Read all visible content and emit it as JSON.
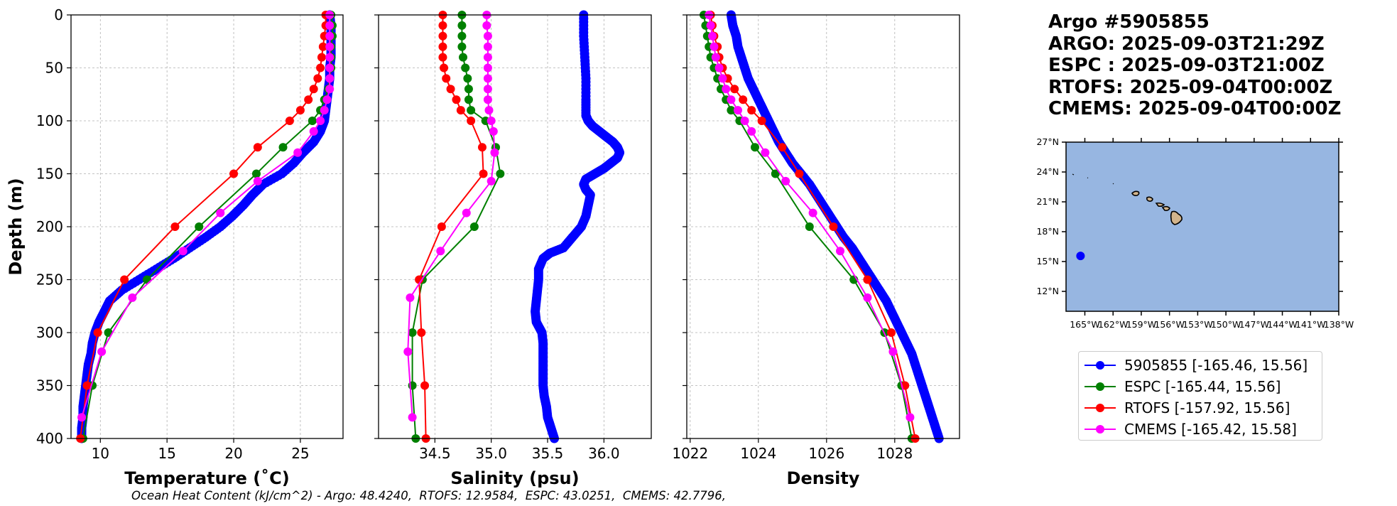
{
  "header": {
    "lines": [
      "Argo #5905855",
      "ARGO: 2025-09-03T21:29Z",
      "ESPC : 2025-09-03T21:00Z",
      "RTOFS: 2025-09-04T00:00Z",
      "CMEMS: 2025-09-04T00:00Z"
    ]
  },
  "footer": "Ocean Heat Content (kJ/cm^2) - Argo: 48.4240,  RTOFS: 12.9584,  ESPC: 43.0251,  CMEMS: 42.7796,",
  "legend": [
    {
      "label": "5905855 [-165.46, 15.56]",
      "color": "#0000ff"
    },
    {
      "label": "ESPC [-165.44, 15.56]",
      "color": "#008000"
    },
    {
      "label": "RTOFS [-157.92, 15.56]",
      "color": "#ff0000"
    },
    {
      "label": "CMEMS [-165.42, 15.58]",
      "color": "#ff00ff"
    }
  ],
  "chart_data": [
    {
      "type": "line",
      "xlabel": "Temperature (˚C)",
      "ylabel": "Depth (m)",
      "xlim": [
        7.8,
        28.2
      ],
      "ylim": [
        400,
        0
      ],
      "xticks": [
        10,
        15,
        20,
        25
      ],
      "yticks": [
        0,
        50,
        100,
        150,
        200,
        250,
        300,
        350,
        400
      ],
      "grid": true,
      "series": [
        {
          "name": "5905855",
          "color": "#0000ff",
          "dense": true,
          "depth": [
            0,
            10,
            20,
            30,
            40,
            50,
            60,
            70,
            80,
            90,
            100,
            110,
            120,
            130,
            140,
            150,
            160,
            170,
            180,
            190,
            200,
            210,
            220,
            230,
            240,
            250,
            260,
            270,
            280,
            290,
            300,
            310,
            320,
            330,
            340,
            350,
            360,
            370,
            380,
            390,
            400
          ],
          "values": [
            27.2,
            27.3,
            27.3,
            27.3,
            27.3,
            27.2,
            27.2,
            27.1,
            27.0,
            26.9,
            26.8,
            26.5,
            26.0,
            25.2,
            24.5,
            23.6,
            22.2,
            21.4,
            20.7,
            19.9,
            19.0,
            17.9,
            16.7,
            15.5,
            14.2,
            12.9,
            11.6,
            10.7,
            10.3,
            9.9,
            9.6,
            9.4,
            9.3,
            9.1,
            9.0,
            8.9,
            8.8,
            8.7,
            8.7,
            8.6,
            8.6
          ]
        },
        {
          "name": "ESPC",
          "color": "#008000",
          "depth": [
            0,
            10,
            20,
            30,
            40,
            50,
            60,
            70,
            80,
            90,
            100,
            125,
            150,
            200,
            250,
            300,
            350,
            400
          ],
          "values": [
            27.3,
            27.4,
            27.4,
            27.3,
            27.3,
            27.3,
            27.2,
            27.1,
            26.8,
            26.5,
            25.9,
            23.7,
            21.7,
            17.4,
            13.5,
            10.6,
            9.4,
            8.7
          ]
        },
        {
          "name": "RTOFS",
          "color": "#ff0000",
          "depth": [
            0,
            10,
            20,
            30,
            40,
            50,
            60,
            70,
            80,
            90,
            100,
            125,
            150,
            200,
            250,
            300,
            350,
            400
          ],
          "values": [
            26.9,
            26.9,
            26.8,
            26.7,
            26.6,
            26.5,
            26.3,
            26.0,
            25.6,
            25.0,
            24.2,
            21.8,
            20.0,
            15.6,
            11.8,
            9.8,
            9.0,
            8.5
          ]
        },
        {
          "name": "CMEMS",
          "color": "#ff00ff",
          "depth": [
            0,
            10,
            20,
            30,
            40,
            50,
            60,
            70,
            80,
            90,
            100,
            110,
            130,
            157,
            187,
            223,
            267,
            318,
            380
          ],
          "values": [
            27.2,
            27.2,
            27.2,
            27.2,
            27.2,
            27.2,
            27.2,
            27.2,
            27.0,
            26.8,
            26.5,
            26.0,
            24.8,
            21.8,
            19.0,
            16.2,
            12.4,
            10.1,
            8.6
          ]
        }
      ]
    },
    {
      "type": "line",
      "xlabel": "Salinity (psu)",
      "ylabel": "",
      "xlim": [
        34.0,
        36.42
      ],
      "ylim": [
        400,
        0
      ],
      "xticks": [
        34.5,
        35.0,
        35.5,
        36.0
      ],
      "yticks": [
        0,
        50,
        100,
        150,
        200,
        250,
        300,
        350,
        400
      ],
      "grid": true,
      "series": [
        {
          "name": "5905855",
          "color": "#0000ff",
          "dense": true,
          "depth": [
            0,
            20,
            40,
            60,
            80,
            95,
            100,
            105,
            110,
            115,
            120,
            125,
            130,
            135,
            140,
            145,
            150,
            155,
            160,
            165,
            170,
            180,
            190,
            200,
            210,
            220,
            225,
            230,
            240,
            250,
            260,
            270,
            280,
            290,
            300,
            310,
            320,
            330,
            340,
            350,
            360,
            370,
            380,
            390,
            400
          ],
          "values": [
            35.82,
            35.82,
            35.83,
            35.84,
            35.84,
            35.84,
            35.86,
            35.9,
            35.96,
            36.02,
            36.08,
            36.12,
            36.14,
            36.12,
            36.06,
            36.0,
            35.92,
            35.84,
            35.82,
            35.84,
            35.88,
            35.86,
            35.84,
            35.8,
            35.72,
            35.64,
            35.52,
            35.46,
            35.42,
            35.42,
            35.41,
            35.4,
            35.39,
            35.4,
            35.45,
            35.46,
            35.46,
            35.46,
            35.46,
            35.46,
            35.47,
            35.49,
            35.5,
            35.53,
            35.56
          ]
        },
        {
          "name": "ESPC",
          "color": "#008000",
          "depth": [
            0,
            10,
            20,
            30,
            40,
            50,
            60,
            70,
            80,
            90,
            100,
            125,
            150,
            200,
            250,
            300,
            350,
            400
          ],
          "values": [
            34.74,
            34.74,
            34.74,
            34.74,
            34.75,
            34.77,
            34.79,
            34.8,
            34.8,
            34.82,
            34.95,
            35.04,
            35.08,
            34.85,
            34.39,
            34.3,
            34.3,
            34.33
          ]
        },
        {
          "name": "RTOFS",
          "color": "#ff0000",
          "depth": [
            0,
            10,
            20,
            30,
            40,
            50,
            60,
            70,
            80,
            90,
            100,
            125,
            150,
            200,
            250,
            300,
            350,
            400
          ],
          "values": [
            34.57,
            34.57,
            34.57,
            34.57,
            34.57,
            34.58,
            34.6,
            34.64,
            34.69,
            34.73,
            34.82,
            34.92,
            34.93,
            34.56,
            34.36,
            34.38,
            34.41,
            34.42
          ]
        },
        {
          "name": "CMEMS",
          "color": "#ff00ff",
          "depth": [
            0,
            10,
            20,
            30,
            40,
            50,
            60,
            70,
            80,
            90,
            100,
            110,
            130,
            157,
            187,
            223,
            267,
            318,
            380
          ],
          "values": [
            34.96,
            34.96,
            34.97,
            34.97,
            34.97,
            34.97,
            34.97,
            34.97,
            34.97,
            34.98,
            35.0,
            35.02,
            35.03,
            35.0,
            34.78,
            34.55,
            34.28,
            34.26,
            34.3
          ]
        }
      ]
    },
    {
      "type": "line",
      "xlabel": "Density",
      "ylabel": "",
      "xlim": [
        1021.9,
        1029.9
      ],
      "ylim": [
        400,
        0
      ],
      "xticks": [
        1022,
        1024,
        1026,
        1028
      ],
      "yticks": [
        0,
        50,
        100,
        150,
        200,
        250,
        300,
        350,
        400
      ],
      "grid": true,
      "series": [
        {
          "name": "5905855",
          "color": "#0000ff",
          "dense": true,
          "depth": [
            0,
            10,
            20,
            30,
            40,
            50,
            60,
            70,
            80,
            90,
            100,
            110,
            120,
            130,
            140,
            150,
            160,
            170,
            180,
            190,
            200,
            210,
            220,
            230,
            240,
            250,
            260,
            270,
            280,
            290,
            300,
            310,
            320,
            330,
            340,
            350,
            360,
            370,
            380,
            390,
            400
          ],
          "values": [
            1023.2,
            1023.25,
            1023.35,
            1023.4,
            1023.5,
            1023.6,
            1023.7,
            1023.85,
            1024.0,
            1024.15,
            1024.3,
            1024.45,
            1024.6,
            1024.8,
            1025.0,
            1025.25,
            1025.5,
            1025.7,
            1025.9,
            1026.1,
            1026.3,
            1026.5,
            1026.75,
            1026.95,
            1027.15,
            1027.35,
            1027.55,
            1027.75,
            1027.9,
            1028.05,
            1028.2,
            1028.35,
            1028.5,
            1028.6,
            1028.7,
            1028.8,
            1028.9,
            1029.0,
            1029.1,
            1029.2,
            1029.3
          ]
        },
        {
          "name": "ESPC",
          "color": "#008000",
          "depth": [
            0,
            10,
            20,
            30,
            40,
            50,
            60,
            70,
            80,
            90,
            100,
            125,
            150,
            200,
            250,
            300,
            350,
            400
          ],
          "values": [
            1022.4,
            1022.45,
            1022.5,
            1022.55,
            1022.6,
            1022.7,
            1022.8,
            1022.9,
            1023.05,
            1023.2,
            1023.45,
            1023.9,
            1024.5,
            1025.5,
            1026.8,
            1027.7,
            1028.2,
            1028.5
          ]
        },
        {
          "name": "RTOFS",
          "color": "#ff0000",
          "depth": [
            0,
            10,
            20,
            30,
            40,
            50,
            60,
            70,
            80,
            90,
            100,
            125,
            150,
            200,
            250,
            300,
            350,
            400
          ],
          "values": [
            1022.6,
            1022.65,
            1022.7,
            1022.8,
            1022.85,
            1022.95,
            1023.1,
            1023.3,
            1023.55,
            1023.8,
            1024.1,
            1024.7,
            1025.2,
            1026.2,
            1027.2,
            1027.9,
            1028.3,
            1028.6
          ]
        },
        {
          "name": "CMEMS",
          "color": "#ff00ff",
          "depth": [
            0,
            10,
            20,
            30,
            40,
            50,
            60,
            70,
            80,
            90,
            100,
            110,
            130,
            157,
            187,
            223,
            267,
            318,
            380
          ],
          "values": [
            1022.55,
            1022.6,
            1022.65,
            1022.7,
            1022.75,
            1022.85,
            1022.95,
            1023.05,
            1023.2,
            1023.4,
            1023.6,
            1023.8,
            1024.2,
            1024.8,
            1025.6,
            1026.4,
            1027.2,
            1027.95,
            1028.45
          ]
        }
      ]
    }
  ],
  "map": {
    "lat_labels": [
      "27°N",
      "24°N",
      "21°N",
      "18°N",
      "15°N",
      "12°N"
    ],
    "lon_labels": [
      "165°W",
      "162°W",
      "159°W",
      "156°W",
      "153°W",
      "150°W",
      "147°W",
      "144°W",
      "141°W",
      "138°W"
    ],
    "lon_range": [
      -167,
      -138
    ],
    "lat_range": [
      10,
      27
    ],
    "lat_ticks": [
      27,
      24,
      21,
      18,
      15,
      12
    ],
    "lon_ticks": [
      -165,
      -162,
      -159,
      -156,
      -153,
      -150,
      -147,
      -144,
      -141,
      -138
    ],
    "marker": {
      "lon": -165.46,
      "lat": 15.56,
      "color": "#0000ff"
    },
    "ocean_color": "#97b6e1",
    "land_color": "#d2b48c"
  }
}
